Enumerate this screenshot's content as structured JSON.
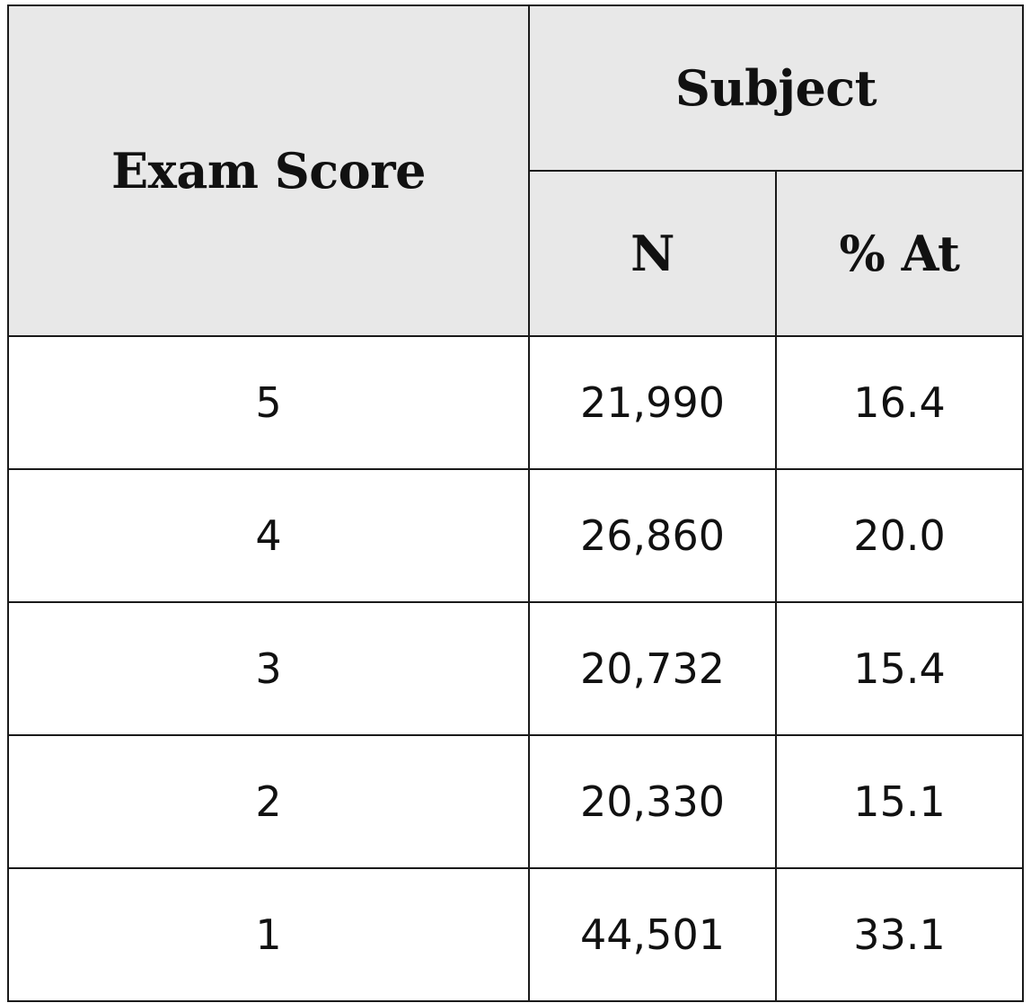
{
  "chart_data": {
    "type": "table",
    "header": {
      "row_header": "Exam Score",
      "group_header": "Subject",
      "columns": [
        "N",
        "% At"
      ]
    },
    "rows": [
      {
        "score": "5",
        "n": "21,990",
        "pct": "16.4"
      },
      {
        "score": "4",
        "n": "26,860",
        "pct": "20.0"
      },
      {
        "score": "3",
        "n": "20,732",
        "pct": "15.4"
      },
      {
        "score": "2",
        "n": "20,330",
        "pct": "15.1"
      },
      {
        "score": "1",
        "n": "44,501",
        "pct": "33.1"
      }
    ]
  }
}
